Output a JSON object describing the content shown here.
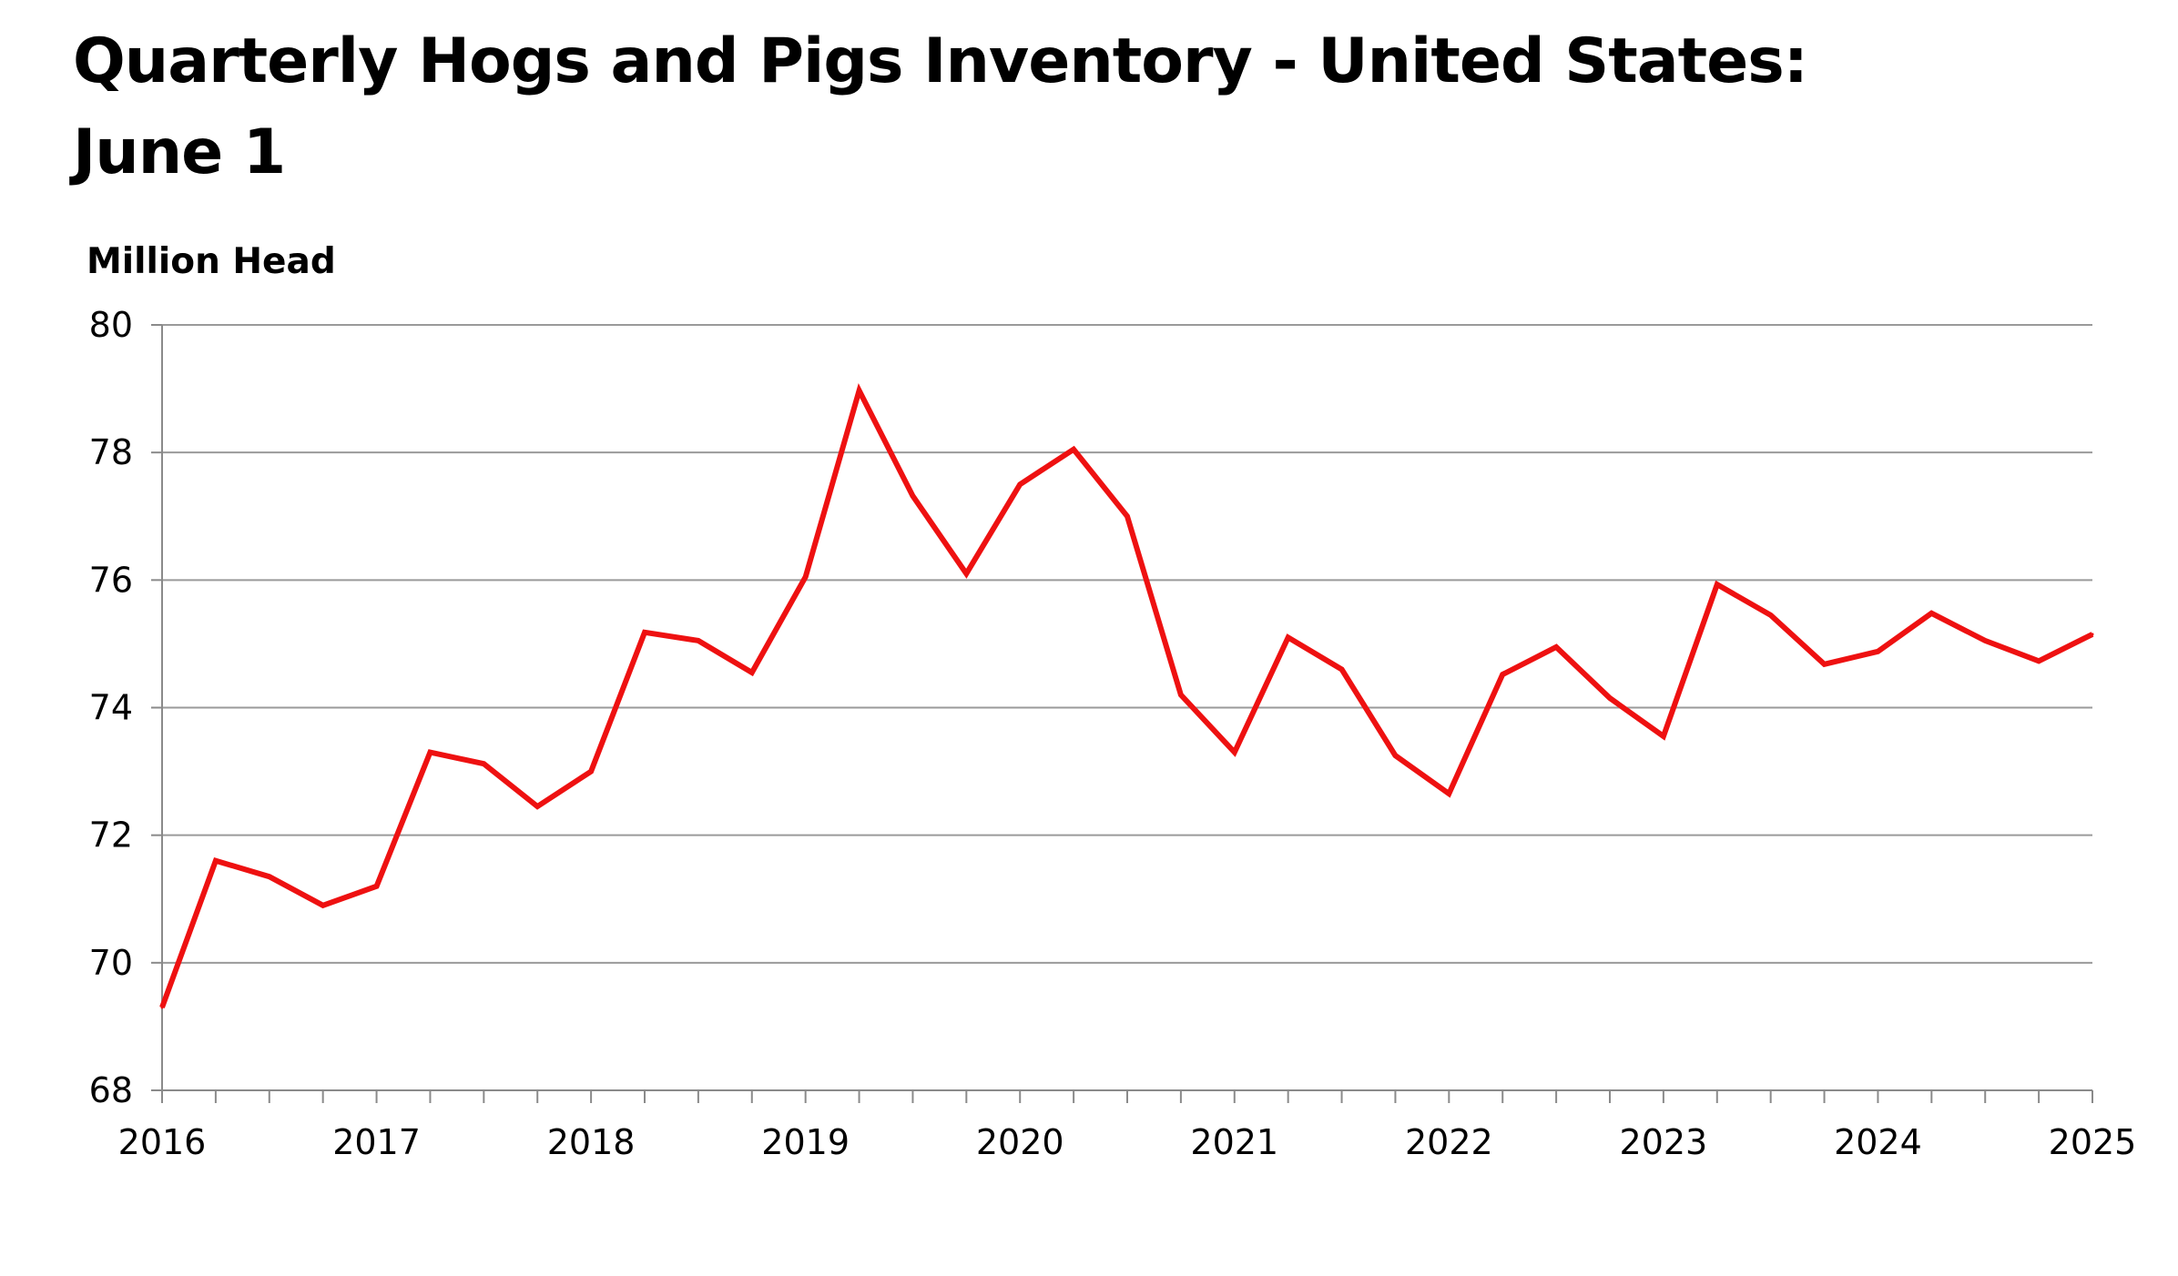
{
  "title_line1": "Quarterly Hogs and Pigs Inventory - United States:",
  "title_line2": "June 1",
  "chart_data": {
    "type": "line",
    "title": "Quarterly Hogs and Pigs Inventory - United States: June 1",
    "xlabel": "",
    "ylabel": "Million Head",
    "ylim": [
      68,
      80
    ],
    "xlim": [
      2016,
      2025
    ],
    "yticks": [
      68,
      70,
      72,
      74,
      76,
      78,
      80
    ],
    "xticks": [
      "2016",
      "2017",
      "2018",
      "2019",
      "2020",
      "2021",
      "2022",
      "2023",
      "2024",
      "2025"
    ],
    "grid": "horizontal",
    "line_color": "#ee1111",
    "series": [
      {
        "x": [
          2016.0,
          2016.25,
          2016.5,
          2016.75,
          2017.0,
          2017.25,
          2017.5,
          2017.75,
          2018.0,
          2018.25,
          2018.5,
          2018.75,
          2019.0,
          2019.25,
          2019.5,
          2019.75,
          2020.0,
          2020.25,
          2020.5,
          2020.75,
          2021.0,
          2021.25,
          2021.5,
          2021.75,
          2022.0,
          2022.25,
          2022.5,
          2022.75,
          2023.0,
          2023.25,
          2023.5,
          2023.75,
          2024.0,
          2024.25,
          2024.5,
          2024.75,
          2025.0
        ],
        "values": [
          69.3,
          71.6,
          71.35,
          70.9,
          71.2,
          73.3,
          73.12,
          72.45,
          73.0,
          75.18,
          75.05,
          74.55,
          76.05,
          78.97,
          77.32,
          76.1,
          77.5,
          78.05,
          77.0,
          74.2,
          73.3,
          75.1,
          74.6,
          73.25,
          72.65,
          74.52,
          74.95,
          74.15,
          73.55,
          75.93,
          75.45,
          74.68,
          74.88,
          75.48,
          75.05,
          74.73,
          75.15
        ]
      }
    ]
  }
}
